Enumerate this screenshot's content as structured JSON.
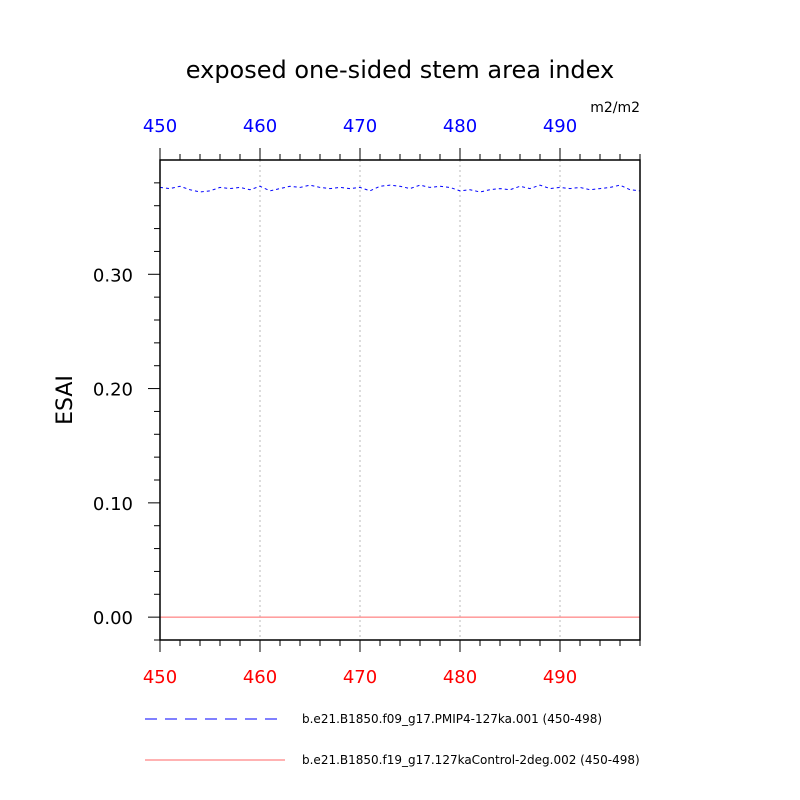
{
  "chart_data": {
    "type": "line",
    "title": "exposed one-sided stem area index",
    "ylabel": "ESAI",
    "units": "m2/m2",
    "xlim": [
      450,
      498
    ],
    "ylim": [
      -0.02,
      0.4
    ],
    "x_ticks": [
      "450",
      "460",
      "470",
      "480",
      "490"
    ],
    "x_tick_values": [
      450,
      460,
      470,
      480,
      490
    ],
    "y_ticks": [
      "0.00",
      "0.10",
      "0.20",
      "0.30"
    ],
    "y_tick_values": [
      0.0,
      0.1,
      0.2,
      0.3
    ],
    "grid": true,
    "legend_placement": "bottom",
    "x": [
      450,
      451,
      452,
      453,
      454,
      455,
      456,
      457,
      458,
      459,
      460,
      461,
      462,
      463,
      464,
      465,
      466,
      467,
      468,
      469,
      470,
      471,
      472,
      473,
      474,
      475,
      476,
      477,
      478,
      479,
      480,
      481,
      482,
      483,
      484,
      485,
      486,
      487,
      488,
      489,
      490,
      491,
      492,
      493,
      494,
      495,
      496,
      497,
      498
    ],
    "series": [
      {
        "name": "b.e21.B1850.f09_g17.PMIP4-127ka.001 (450-498)",
        "color": "#0000ff",
        "dash": "dashed",
        "values": [
          0.376,
          0.375,
          0.377,
          0.374,
          0.372,
          0.373,
          0.376,
          0.375,
          0.376,
          0.374,
          0.377,
          0.373,
          0.375,
          0.377,
          0.376,
          0.378,
          0.376,
          0.375,
          0.376,
          0.375,
          0.376,
          0.373,
          0.377,
          0.378,
          0.377,
          0.375,
          0.378,
          0.376,
          0.377,
          0.376,
          0.373,
          0.374,
          0.372,
          0.374,
          0.375,
          0.374,
          0.377,
          0.375,
          0.378,
          0.375,
          0.376,
          0.375,
          0.376,
          0.374,
          0.375,
          0.376,
          0.378,
          0.374,
          0.373
        ]
      },
      {
        "name": "b.e21.B1850.f19_g17.127kaControl-2deg.002 (450-498)",
        "color": "#ff6666",
        "dash": "solid",
        "values": [
          0,
          0,
          0,
          0,
          0,
          0,
          0,
          0,
          0,
          0,
          0,
          0,
          0,
          0,
          0,
          0,
          0,
          0,
          0,
          0,
          0,
          0,
          0,
          0,
          0,
          0,
          0,
          0,
          0,
          0,
          0,
          0,
          0,
          0,
          0,
          0,
          0,
          0,
          0,
          0,
          0,
          0,
          0,
          0,
          0,
          0,
          0,
          0,
          0
        ]
      }
    ]
  }
}
